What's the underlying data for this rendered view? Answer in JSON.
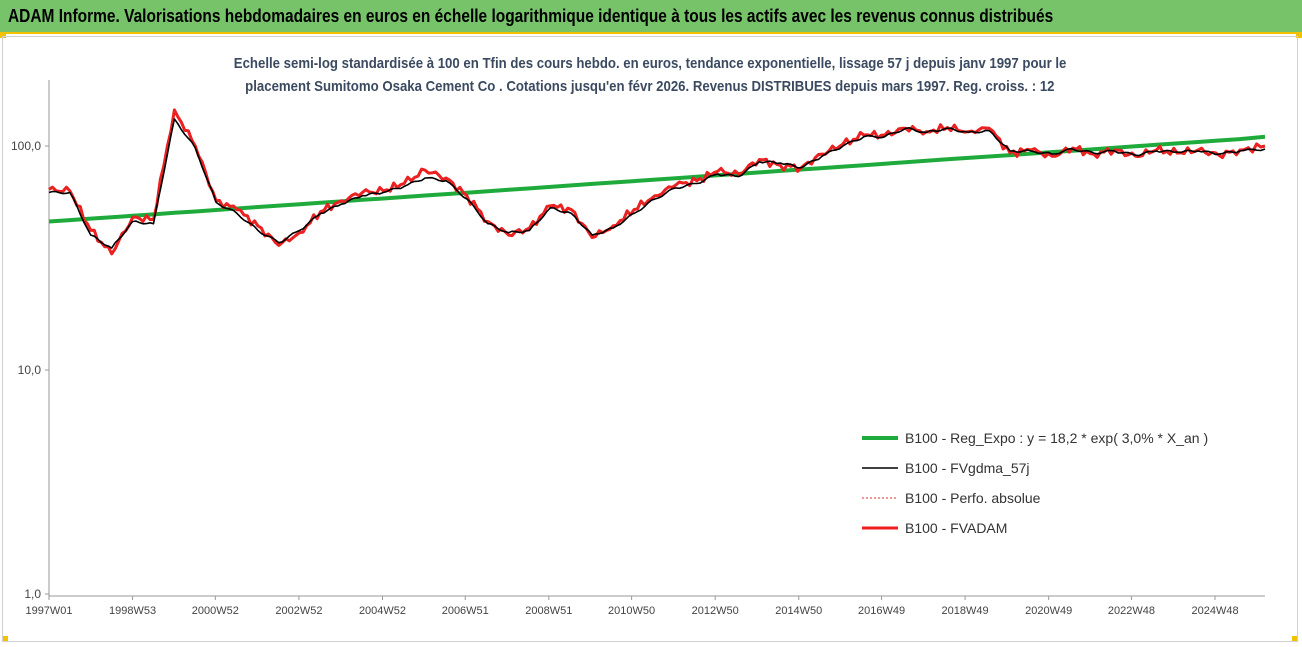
{
  "banner": {
    "title": "ADAM Informe. Valorisations hebdomadaires en euros en échelle logarithmique identique à tous les actifs avec les revenus connus distribués",
    "color": "#77c36a",
    "accent": "#f2c200"
  },
  "chart_data": {
    "type": "line",
    "title_lines": [
      "Echelle semi-log standardisée à 100 en Tfin des cours hebdo. en euros, tendance exponentielle, lissage 57 j depuis janv 1997 pour le",
      "placement Sumitomo Osaka Cement Co . Cotations jusqu'en févr 2026. Revenus DISTRIBUES depuis mars 1997. Reg. croiss. : 12"
    ],
    "y_scale": "log",
    "ylim": [
      1,
      200
    ],
    "y_ticks": [
      "1,0",
      "10,0",
      "100,0"
    ],
    "x_tick_labels": [
      "1997W01",
      "1998W53",
      "2000W52",
      "2002W52",
      "2004W52",
      "2006W51",
      "2008W51",
      "2010W50",
      "2012W50",
      "2014W50",
      "2016W49",
      "2018W49",
      "2020W49",
      "2022W48",
      "2024W48"
    ],
    "x_range_years": [
      1997.0,
      2026.1
    ],
    "grid": false,
    "legend_position": "right-lower",
    "x_years": [
      1997.0,
      1997.5,
      1998.0,
      1998.5,
      1999.0,
      1999.5,
      2000.0,
      2000.5,
      2001.0,
      2001.5,
      2002.0,
      2002.5,
      2003.0,
      2003.5,
      2004.0,
      2004.5,
      2005.0,
      2005.5,
      2006.0,
      2006.5,
      2007.0,
      2007.5,
      2008.0,
      2008.5,
      2009.0,
      2009.5,
      2010.0,
      2010.5,
      2011.0,
      2011.5,
      2012.0,
      2012.5,
      2013.0,
      2013.5,
      2014.0,
      2014.5,
      2015.0,
      2015.5,
      2016.0,
      2016.5,
      2017.0,
      2017.5,
      2018.0,
      2018.5,
      2019.0,
      2019.5,
      2020.0,
      2020.5,
      2021.0,
      2021.5,
      2022.0,
      2022.5,
      2023.0,
      2023.5,
      2024.0,
      2024.5,
      2025.0,
      2025.5,
      2026.1
    ],
    "series": [
      {
        "name": "B100 - Reg_Expo : y = 18,2 * exp( 3,0% *  X_an )",
        "color": "#1faa3c",
        "width": 4,
        "dash": "",
        "values": [
          46,
          46.7,
          47.4,
          48.1,
          48.8,
          49.5,
          50.3,
          51.0,
          51.8,
          52.6,
          53.4,
          54.2,
          55.0,
          55.8,
          56.6,
          57.5,
          58.3,
          59.2,
          60.1,
          61.0,
          61.9,
          62.8,
          63.8,
          64.7,
          65.7,
          66.7,
          67.7,
          68.7,
          69.7,
          70.8,
          71.8,
          72.9,
          74.0,
          75.1,
          76.2,
          77.4,
          78.5,
          79.7,
          80.9,
          82.1,
          83.4,
          84.6,
          85.9,
          87.2,
          88.5,
          89.8,
          91.1,
          92.5,
          93.9,
          95.3,
          96.7,
          98.2,
          99.7,
          101.2,
          102.7,
          104.2,
          105.8,
          107.4,
          110
        ]
      },
      {
        "name": "B100 - FVgdma_57j",
        "color": "#000000",
        "width": 1.6,
        "dash": "",
        "values": [
          62,
          62,
          40,
          35,
          46,
          45,
          132,
          98,
          56,
          50,
          42,
          37,
          42,
          50,
          55,
          60,
          62,
          66,
          72,
          70,
          58,
          45,
          41,
          42,
          53,
          50,
          40,
          43,
          50,
          58,
          65,
          68,
          75,
          73,
          85,
          84,
          80,
          90,
          100,
          110,
          110,
          120,
          115,
          120,
          115,
          117,
          95,
          95,
          92,
          97,
          93,
          95,
          91,
          95,
          94,
          95,
          92,
          95,
          97
        ]
      },
      {
        "name": "B100 - Perfo. absolue",
        "color": "#e03030",
        "width": 1,
        "dash": "2,2",
        "values": [
          64,
          63,
          42,
          33,
          48,
          47,
          145,
          100,
          57,
          52,
          44,
          36,
          41,
          51,
          57,
          62,
          63,
          68,
          78,
          72,
          60,
          46,
          40,
          43,
          54,
          52,
          39,
          44,
          52,
          60,
          67,
          70,
          77,
          75,
          87,
          82,
          80,
          92,
          102,
          112,
          112,
          120,
          116,
          121,
          116,
          120,
          93,
          96,
          90,
          98,
          92,
          96,
          90,
          96,
          93,
          96,
          91,
          96,
          100
        ]
      },
      {
        "name": "B100 - FVADAM",
        "color": "#ee1c1c",
        "width": 3,
        "dash": "",
        "values": [
          64,
          63,
          42,
          33,
          48,
          47,
          145,
          100,
          57,
          52,
          44,
          36,
          41,
          51,
          57,
          62,
          63,
          68,
          78,
          72,
          60,
          46,
          40,
          43,
          54,
          52,
          39,
          44,
          52,
          60,
          67,
          70,
          77,
          75,
          87,
          82,
          80,
          92,
          102,
          112,
          112,
          120,
          116,
          121,
          116,
          120,
          93,
          96,
          90,
          98,
          92,
          96,
          90,
          96,
          93,
          96,
          91,
          96,
          100
        ]
      }
    ]
  }
}
